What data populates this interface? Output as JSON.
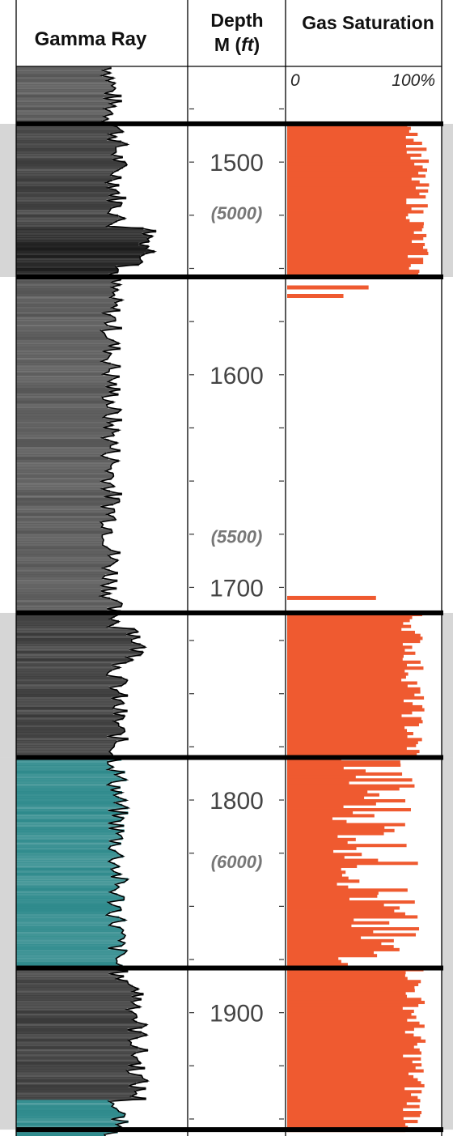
{
  "headers": {
    "gamma": "Gamma Ray",
    "depth_line1": "Depth",
    "depth_m": "M (",
    "depth_ft": "ft",
    "depth_close": ")",
    "gas": "Gas Saturation"
  },
  "chart_data": {
    "type": "well-log",
    "tracks": [
      "Gamma Ray",
      "Depth M (ft)",
      "Gas Saturation"
    ],
    "depth_unit": "m",
    "depth_range": [
      1455,
      1958
    ],
    "depth_ticks": [
      1500,
      1600,
      1700,
      1800,
      1900
    ],
    "feet_labels": [
      {
        "label": "(5000)",
        "depth_m": 1524
      },
      {
        "label": "(5500)",
        "depth_m": 1676
      },
      {
        "label": "(6000)",
        "depth_m": 1829
      }
    ],
    "gas_scale": {
      "min_label": "0",
      "max_label": "100%",
      "min": 0,
      "max": 100
    },
    "zone_boundaries_m": [
      1482,
      1554,
      1712,
      1780,
      1879,
      1955
    ],
    "gas_zones": [
      {
        "top_m": 1482,
        "base_m": 1554,
        "avg_saturation_pct": 88
      },
      {
        "top_m": 1712,
        "base_m": 1780,
        "avg_saturation_pct": 85
      },
      {
        "top_m": 1780,
        "base_m": 1879,
        "avg_saturation_pct": 60
      },
      {
        "top_m": 1879,
        "base_m": 1955,
        "avg_saturation_pct": 86
      }
    ],
    "gas_stringers": [
      {
        "depth_m": 1558,
        "saturation_pct": 55
      },
      {
        "depth_m": 1562,
        "saturation_pct": 38
      },
      {
        "depth_m": 1704,
        "saturation_pct": 60
      }
    ],
    "colors": {
      "gas_fill": "#ef5a30",
      "gamma_fill_dark": "#1a1a1a",
      "gamma_fill_grey": "#555555",
      "gamma_fill_teal": "#2e8a8c",
      "boundary": "#000000",
      "zone_shade": "#d6d6d6",
      "accent_bar": "#e8532b"
    }
  }
}
